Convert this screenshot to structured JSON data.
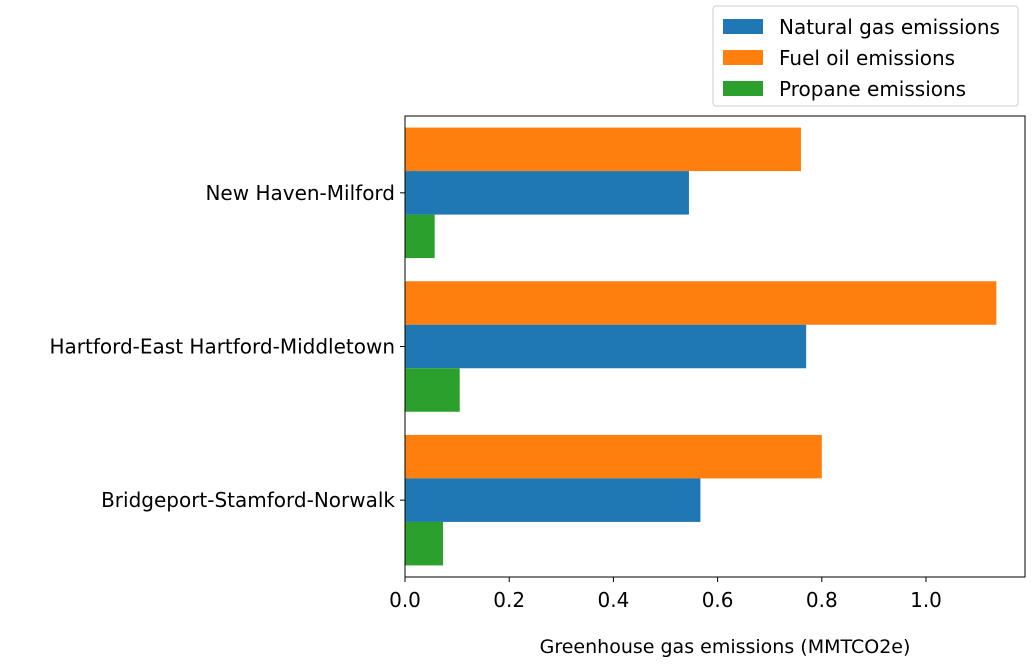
{
  "chart_data": {
    "type": "bar",
    "orientation": "horizontal",
    "categories": [
      "New Haven-Milford",
      "Hartford-East Hartford-Middletown",
      "Bridgeport-Stamford-Norwalk"
    ],
    "series": [
      {
        "name": "Fuel oil emissions",
        "color": "#ff7f0e",
        "values": [
          0.76,
          1.135,
          0.8
        ]
      },
      {
        "name": "Natural gas emissions",
        "color": "#1f77b4",
        "values": [
          0.545,
          0.77,
          0.567
        ]
      },
      {
        "name": "Propane emissions",
        "color": "#2ca02c",
        "values": [
          0.057,
          0.105,
          0.073
        ]
      }
    ],
    "legend": {
      "placement": "top-right",
      "entries": [
        {
          "name": "Natural gas emissions",
          "color": "#1f77b4"
        },
        {
          "name": "Fuel oil emissions",
          "color": "#ff7f0e"
        },
        {
          "name": "Propane emissions",
          "color": "#2ca02c"
        }
      ]
    },
    "xlabel": "Greenhouse gas emissions (MMTCO2e)",
    "ylabel": "",
    "title": "",
    "xlim": [
      0,
      1.19
    ],
    "xticks": [
      0.0,
      0.2,
      0.4,
      0.6,
      0.8,
      1.0
    ],
    "xtick_labels": [
      "0.0",
      "0.2",
      "0.4",
      "0.6",
      "0.8",
      "1.0"
    ],
    "grid": false
  }
}
